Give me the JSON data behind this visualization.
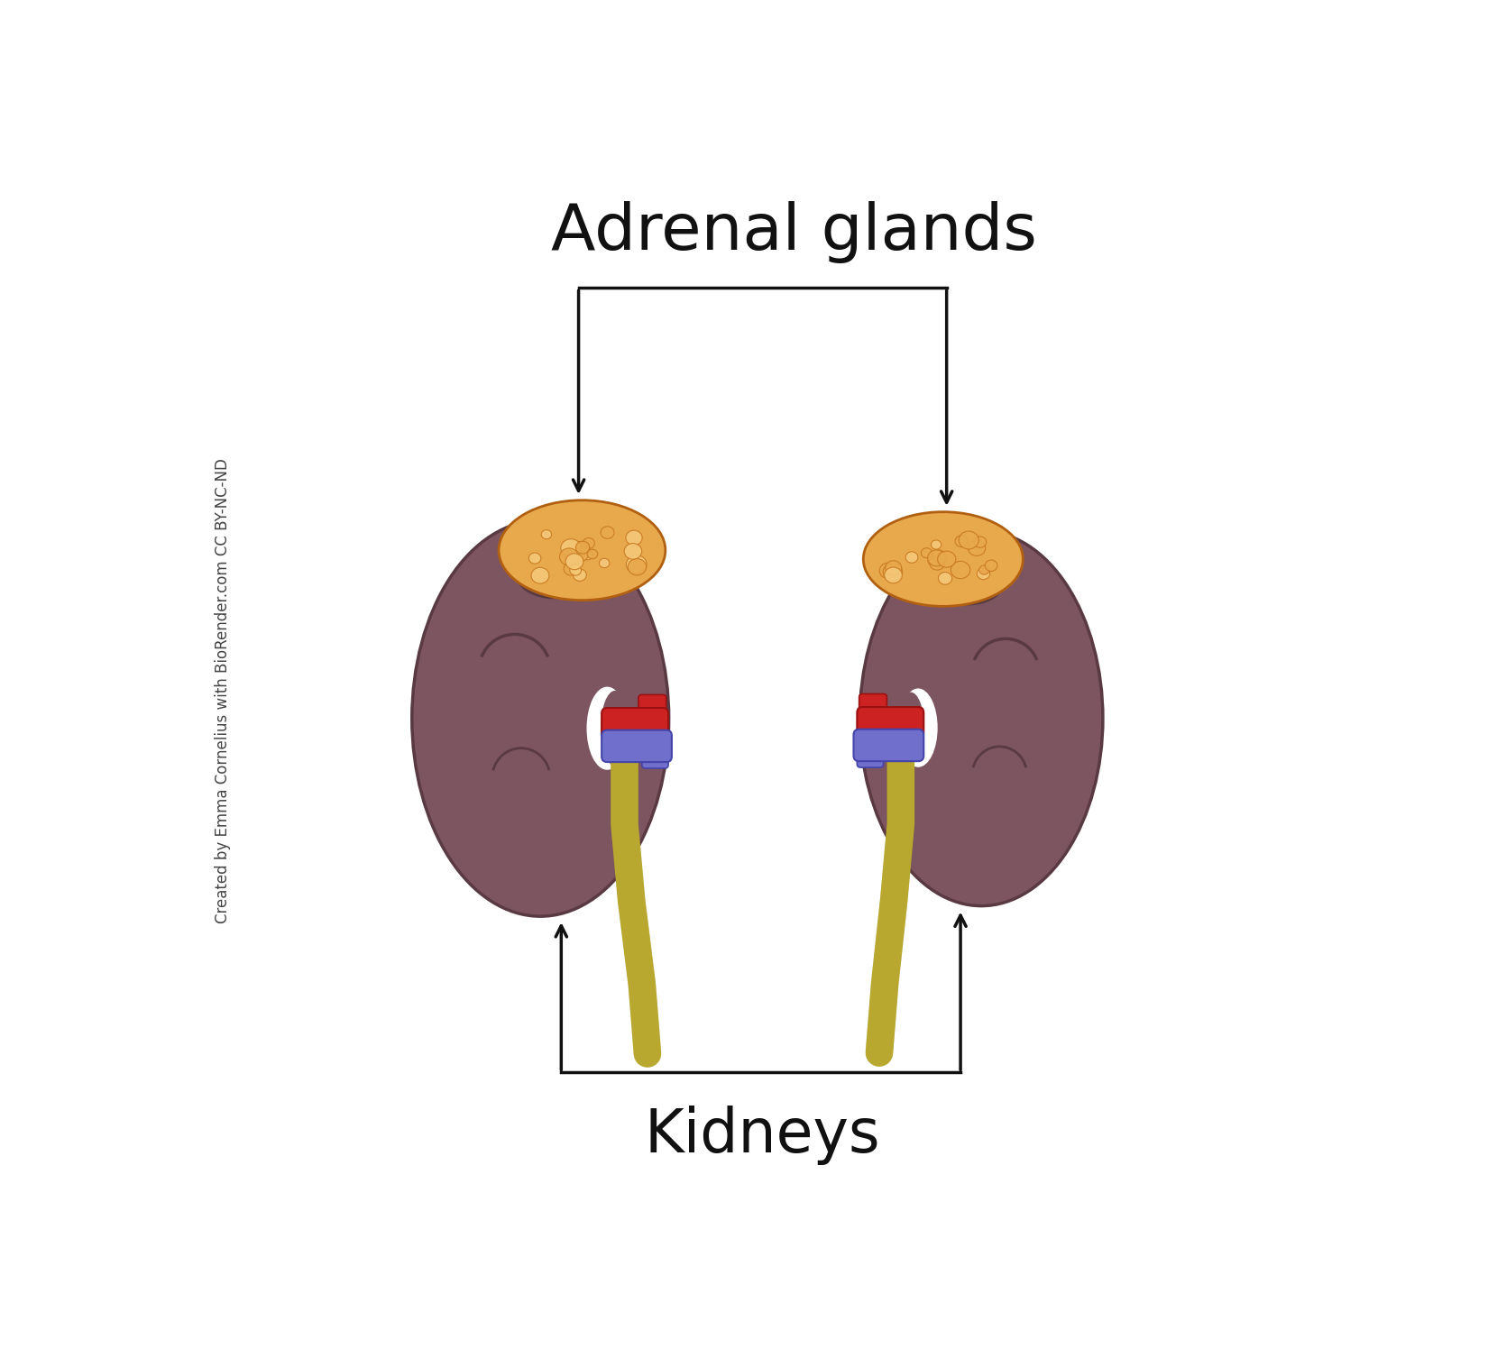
{
  "title": "Adrenal glands",
  "kidneys_label": "Kidneys",
  "watermark": "Created by Emma Cornelius with BioRender.com CC BY-NC-ND",
  "bg_color": "#ffffff",
  "kidney_color": "#7d5560",
  "kidney_edge": "#5a3a42",
  "kidney_dark": "#5a3a42",
  "kidney_highlight": "#9e7080",
  "adrenal_color": "#e8a84c",
  "adrenal_dark": "#c87820",
  "adrenal_light": "#f5c878",
  "adrenal_edge": "#b06010",
  "artery_color": "#cc2222",
  "artery_edge": "#991111",
  "vein_color": "#7070cc",
  "vein_edge": "#4444aa",
  "ureter_color": "#b8a830",
  "ureter_edge": "#8a7810",
  "line_color": "#111111",
  "text_color": "#111111",
  "title_fontsize": 52,
  "label_fontsize": 48,
  "watermark_fontsize": 12
}
